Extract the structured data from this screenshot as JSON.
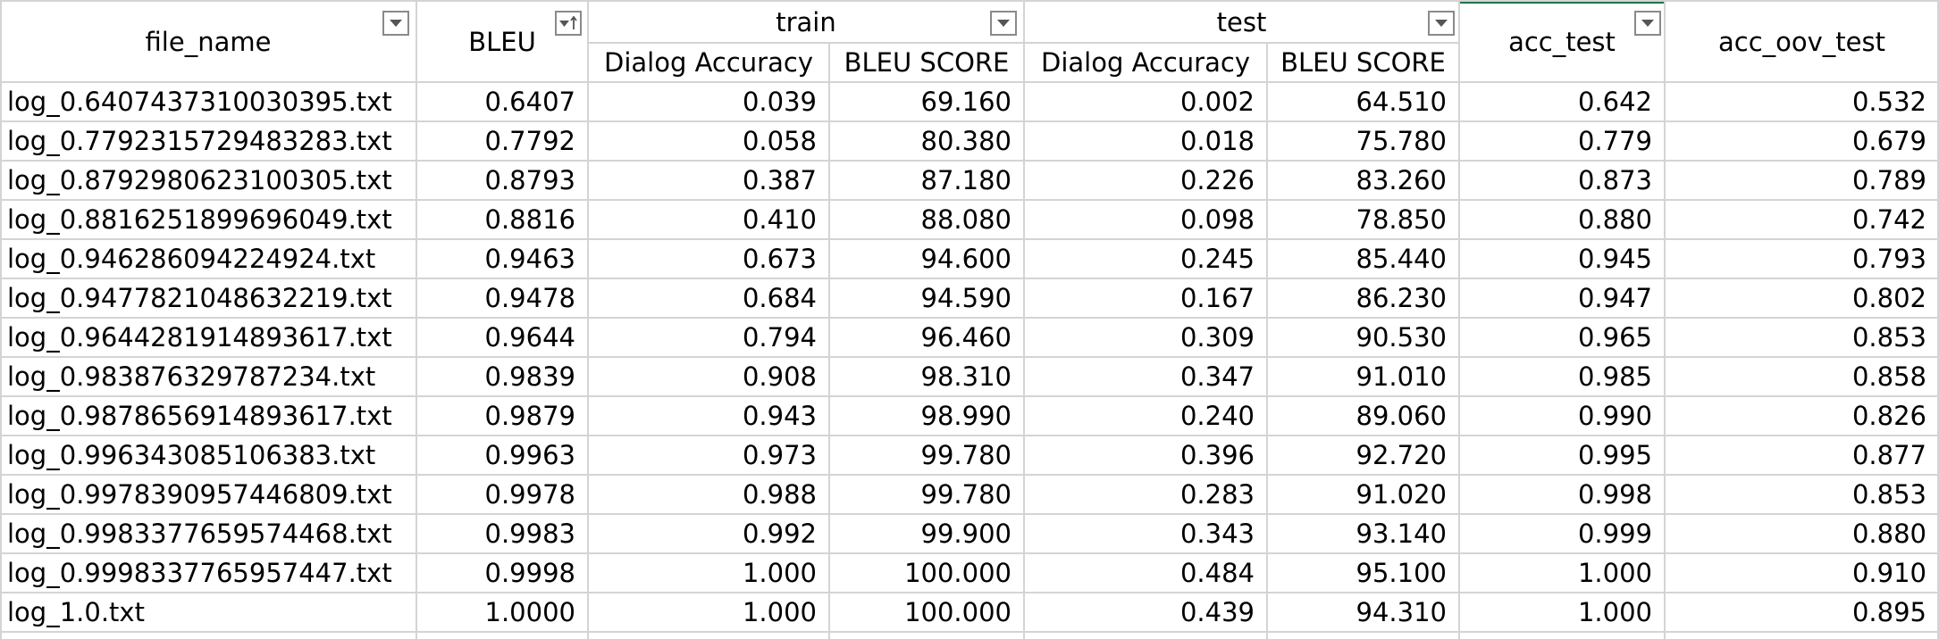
{
  "sheet": {
    "headers": {
      "file_name": "file_name",
      "bleu": "BLEU",
      "train": "train",
      "test": "test",
      "acc_test": "acc_test",
      "acc_oov_test": "acc_oov_test",
      "train_dialog_accuracy": "Dialog Accuracy",
      "train_bleu_score": "BLEU SCORE",
      "test_dialog_accuracy": "Dialog Accuracy",
      "test_bleu_score": "BLEU SCORE"
    },
    "filter_icons": {
      "default": "filter-dropdown-icon",
      "sorted": "sort-ascending-filter-icon"
    },
    "colors": {
      "gridline": "#d4d4d4",
      "active_column_marker": "#217346",
      "filter_button_border": "#8a8a8a"
    },
    "rows": [
      [
        "log_0.6407437310030395.txt",
        "0.6407",
        "0.039",
        "69.160",
        "0.002",
        "64.510",
        "0.642",
        "0.532"
      ],
      [
        "log_0.7792315729483283.txt",
        "0.7792",
        "0.058",
        "80.380",
        "0.018",
        "75.780",
        "0.779",
        "0.679"
      ],
      [
        "log_0.8792980623100305.txt",
        "0.8793",
        "0.387",
        "87.180",
        "0.226",
        "83.260",
        "0.873",
        "0.789"
      ],
      [
        "log_0.8816251899696049.txt",
        "0.8816",
        "0.410",
        "88.080",
        "0.098",
        "78.850",
        "0.880",
        "0.742"
      ],
      [
        "log_0.946286094224924.txt",
        "0.9463",
        "0.673",
        "94.600",
        "0.245",
        "85.440",
        "0.945",
        "0.793"
      ],
      [
        "log_0.9477821048632219.txt",
        "0.9478",
        "0.684",
        "94.590",
        "0.167",
        "86.230",
        "0.947",
        "0.802"
      ],
      [
        "log_0.9644281914893617.txt",
        "0.9644",
        "0.794",
        "96.460",
        "0.309",
        "90.530",
        "0.965",
        "0.853"
      ],
      [
        "log_0.983876329787234.txt",
        "0.9839",
        "0.908",
        "98.310",
        "0.347",
        "91.010",
        "0.985",
        "0.858"
      ],
      [
        "log_0.9878656914893617.txt",
        "0.9879",
        "0.943",
        "98.990",
        "0.240",
        "89.060",
        "0.990",
        "0.826"
      ],
      [
        "log_0.996343085106383.txt",
        "0.9963",
        "0.973",
        "99.780",
        "0.396",
        "92.720",
        "0.995",
        "0.877"
      ],
      [
        "log_0.9978390957446809.txt",
        "0.9978",
        "0.988",
        "99.780",
        "0.283",
        "91.020",
        "0.998",
        "0.853"
      ],
      [
        "log_0.9983377659574468.txt",
        "0.9983",
        "0.992",
        "99.900",
        "0.343",
        "93.140",
        "0.999",
        "0.880"
      ],
      [
        "log_0.9998337765957447.txt",
        "0.9998",
        "1.000",
        "100.000",
        "0.484",
        "95.100",
        "1.000",
        "0.910"
      ],
      [
        "log_1.0.txt",
        "1.0000",
        "1.000",
        "100.000",
        "0.439",
        "94.310",
        "1.000",
        "0.895"
      ]
    ]
  }
}
